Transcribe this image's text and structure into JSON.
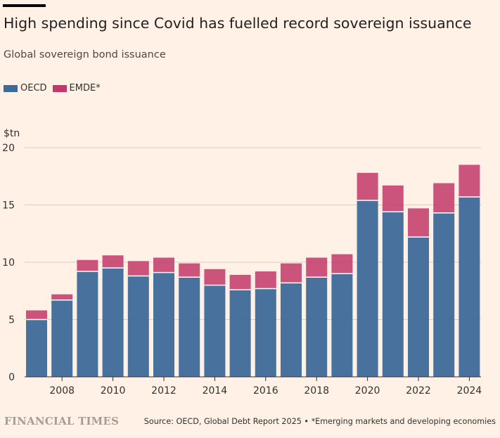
{
  "header": {
    "title": "High spending since Covid has fuelled record sovereign issuance",
    "subtitle": "Global sovereign bond issuance"
  },
  "legend": {
    "items": [
      {
        "label": "OECD",
        "color": "#3e6a99"
      },
      {
        "label": "EMDE*",
        "color": "#c2386a"
      }
    ]
  },
  "footer": {
    "logo_text": "FINANCIAL TIMES",
    "source": "Source: OECD, Global Debt Report 2025 • *Emerging markets and developing economies"
  },
  "colors": {
    "background": "#fff1e5",
    "oecd": "#3e6a99",
    "emde": "#c2386a",
    "gridline": "#d9cdc1",
    "baseline": "#33302e"
  },
  "chart_data": {
    "type": "bar",
    "stacked": true,
    "ylabel": "$tn",
    "ylim": [
      0,
      20
    ],
    "yticks": [
      0,
      5,
      10,
      15,
      20
    ],
    "grid": true,
    "legend_position": "top-left",
    "categories": [
      "2007",
      "2008",
      "2009",
      "2010",
      "2011",
      "2012",
      "2013",
      "2014",
      "2015",
      "2016",
      "2017",
      "2018",
      "2019",
      "2020",
      "2021",
      "2022",
      "2023",
      "2024"
    ],
    "xtick_labels": [
      "2008",
      "2010",
      "2012",
      "2014",
      "2016",
      "2018",
      "2020",
      "2022",
      "2024"
    ],
    "series": [
      {
        "name": "OECD",
        "values": [
          5.0,
          6.7,
          9.2,
          9.5,
          8.8,
          9.1,
          8.7,
          8.0,
          7.6,
          7.7,
          8.2,
          8.7,
          9.0,
          15.4,
          14.4,
          12.2,
          14.3,
          15.7
        ]
      },
      {
        "name": "EMDE*",
        "values": [
          0.8,
          0.5,
          1.0,
          1.1,
          1.3,
          1.3,
          1.2,
          1.4,
          1.3,
          1.5,
          1.7,
          1.7,
          1.7,
          2.4,
          2.3,
          2.5,
          2.6,
          2.8
        ]
      }
    ]
  }
}
